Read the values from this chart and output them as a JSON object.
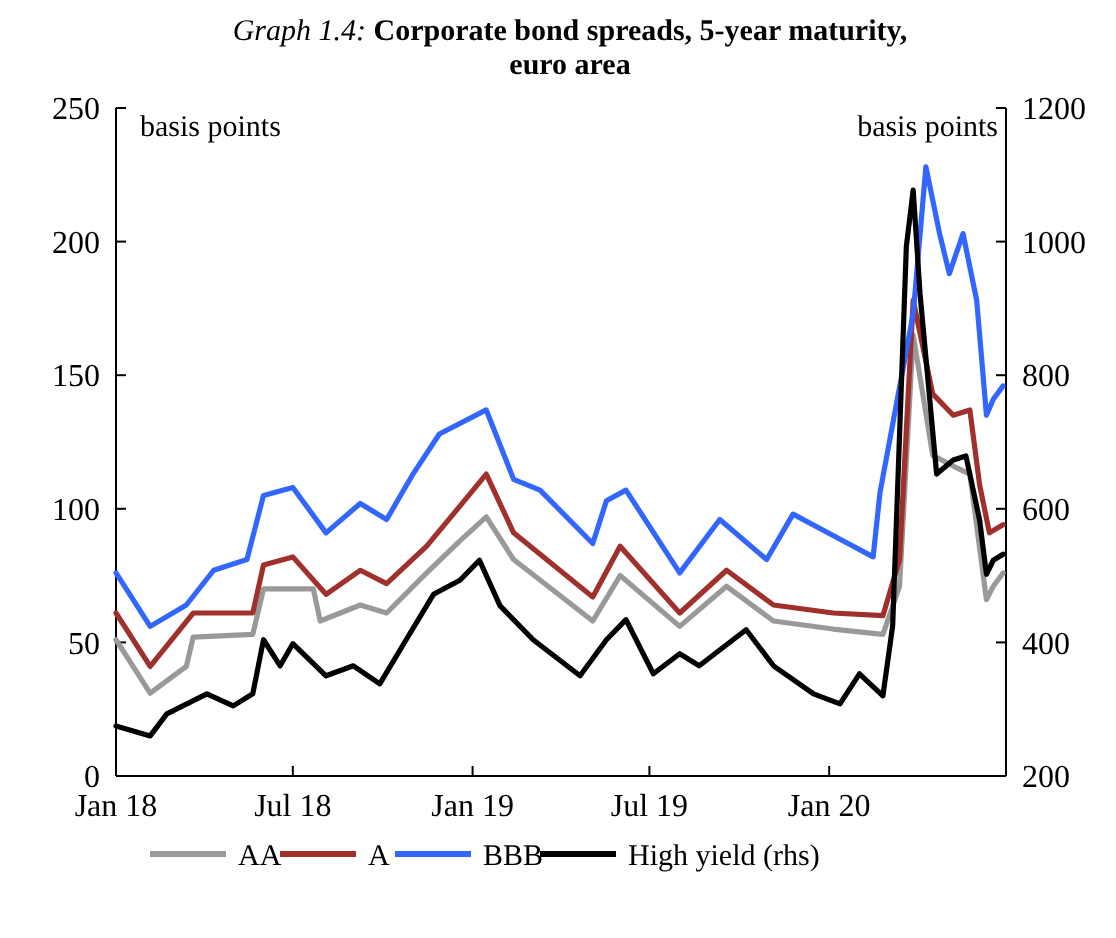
{
  "chart_data": {
    "type": "line",
    "title": "Graph 1.4: Corporate bond spreads, 5-year maturity, euro area",
    "ylabel": "basis points",
    "y2label": "basis points",
    "xlim": [
      "2018-01-01",
      "2020-06-30"
    ],
    "xticks": [
      {
        "value": "2018-01-01",
        "label": "Jan 18"
      },
      {
        "value": "2018-07-01",
        "label": "Jul 18"
      },
      {
        "value": "2019-01-01",
        "label": "Jan 19"
      },
      {
        "value": "2019-07-01",
        "label": "Jul 19"
      },
      {
        "value": "2020-01-01",
        "label": "Jan 20"
      }
    ],
    "ylim": [
      0,
      250
    ],
    "yticks": [
      0,
      50,
      100,
      150,
      200,
      250
    ],
    "y2lim": [
      200,
      1200
    ],
    "y2ticks": [
      200,
      400,
      600,
      800,
      1000,
      1200
    ],
    "legend": "bottom",
    "grid": false,
    "marker": "none",
    "line_style": "solid",
    "series": [
      {
        "name": "AA",
        "color": "#999999",
        "x": [
          "2018-01-01",
          "2018-02-05",
          "2018-03-14",
          "2018-03-21",
          "2018-05-21",
          "2018-06-01",
          "2018-07-22",
          "2018-07-29",
          "2018-09-08",
          "2018-10-05",
          "2018-11-15",
          "2018-12-19",
          "2019-01-15",
          "2019-02-12",
          "2019-05-04",
          "2019-06-01",
          "2019-08-01",
          "2019-09-18",
          "2019-11-05",
          "2020-01-05",
          "2020-02-25",
          "2020-03-13",
          "2020-03-27",
          "2020-04-16",
          "2020-05-07",
          "2020-05-24",
          "2020-06-10",
          "2020-06-17",
          "2020-06-27"
        ],
        "values": [
          51,
          31,
          41,
          52,
          53,
          70,
          70,
          58,
          64,
          61,
          76,
          88,
          97,
          81,
          58,
          75,
          56,
          71,
          58,
          55,
          53,
          71,
          165,
          120,
          116,
          113,
          66,
          71,
          76
        ]
      },
      {
        "name": "A",
        "color": "#a0302c",
        "x": [
          "2018-01-01",
          "2018-02-05",
          "2018-03-21",
          "2018-05-21",
          "2018-06-01",
          "2018-07-01",
          "2018-08-04",
          "2018-09-08",
          "2018-10-05",
          "2018-11-15",
          "2018-12-19",
          "2019-01-15",
          "2019-02-12",
          "2019-05-04",
          "2019-06-01",
          "2019-08-01",
          "2019-09-18",
          "2019-11-05",
          "2020-01-05",
          "2020-02-25",
          "2020-03-13",
          "2020-03-27",
          "2020-04-16",
          "2020-05-07",
          "2020-05-24",
          "2020-06-03",
          "2020-06-13",
          "2020-06-27"
        ],
        "values": [
          61,
          41,
          61,
          61,
          79,
          82,
          68,
          77,
          72,
          86,
          101,
          113,
          91,
          67,
          86,
          61,
          77,
          64,
          61,
          60,
          81,
          178,
          143,
          135,
          137,
          109,
          91,
          94
        ]
      },
      {
        "name": "BBB",
        "color": "#3366ff",
        "x": [
          "2018-01-01",
          "2018-02-05",
          "2018-03-14",
          "2018-04-11",
          "2018-05-15",
          "2018-06-01",
          "2018-07-01",
          "2018-08-04",
          "2018-09-08",
          "2018-10-05",
          "2018-11-01",
          "2018-11-28",
          "2019-01-15",
          "2019-02-12",
          "2019-03-11",
          "2019-05-04",
          "2019-05-18",
          "2019-06-07",
          "2019-08-01",
          "2019-09-11",
          "2019-10-29",
          "2019-11-25",
          "2020-01-05",
          "2020-02-15",
          "2020-02-22",
          "2020-03-27",
          "2020-04-09",
          "2020-04-23",
          "2020-05-03",
          "2020-05-17",
          "2020-05-31",
          "2020-06-10",
          "2020-06-17",
          "2020-06-27"
        ],
        "values": [
          76,
          56,
          64,
          77,
          81,
          105,
          108,
          91,
          102,
          96,
          113,
          128,
          137,
          111,
          107,
          87,
          103,
          107,
          76,
          96,
          81,
          98,
          90,
          82,
          106,
          173,
          228,
          203,
          188,
          203,
          178,
          135,
          141,
          146
        ]
      },
      {
        "name": "High yield (rhs)",
        "color": "#000000",
        "axis": "y2",
        "x": [
          "2018-01-01",
          "2018-02-05",
          "2018-02-22",
          "2018-04-04",
          "2018-05-01",
          "2018-05-21",
          "2018-06-01",
          "2018-06-18",
          "2018-07-01",
          "2018-08-04",
          "2018-09-01",
          "2018-09-28",
          "2018-10-25",
          "2018-11-22",
          "2018-12-19",
          "2019-01-08",
          "2019-01-29",
          "2019-03-04",
          "2019-04-21",
          "2019-05-18",
          "2019-06-07",
          "2019-07-05",
          "2019-08-01",
          "2019-08-21",
          "2019-10-08",
          "2019-11-05",
          "2019-12-16",
          "2020-01-12",
          "2020-02-01",
          "2020-02-25",
          "2020-03-06",
          "2020-03-20",
          "2020-03-27",
          "2020-04-03",
          "2020-04-13",
          "2020-04-20",
          "2020-05-07",
          "2020-05-20",
          "2020-06-03",
          "2020-06-10",
          "2020-06-17",
          "2020-06-27"
        ],
        "values": [
          275,
          260,
          293,
          323,
          305,
          323,
          404,
          365,
          398,
          350,
          365,
          338,
          404,
          472,
          493,
          523,
          455,
          404,
          350,
          404,
          434,
          353,
          383,
          365,
          419,
          365,
          323,
          308,
          353,
          320,
          425,
          993,
          1077,
          922,
          763,
          652,
          673,
          679,
          583,
          502,
          523,
          532
        ]
      }
    ]
  }
}
